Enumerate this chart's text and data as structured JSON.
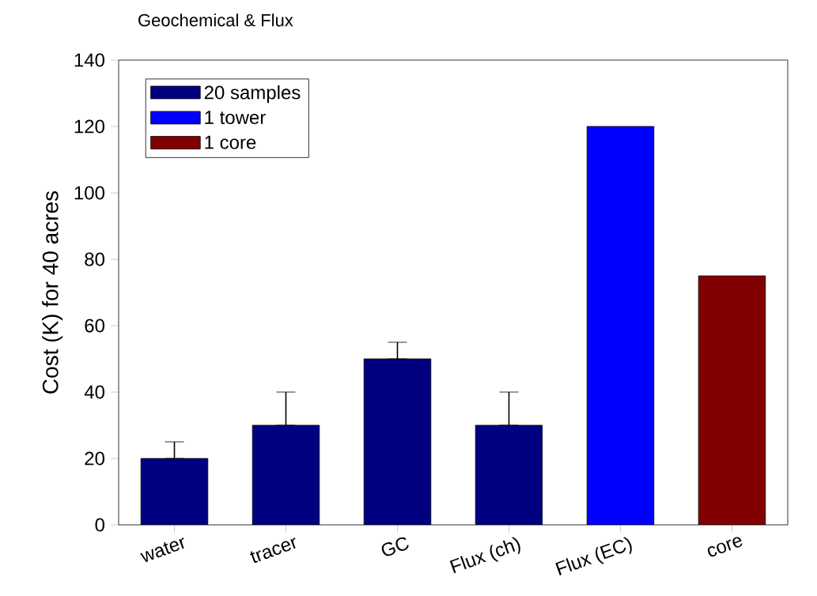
{
  "chart_data": {
    "type": "bar",
    "title": "Geochemical & Flux",
    "ylabel": "Cost (K) for 40 acres",
    "categories": [
      "water",
      "tracer",
      "GC",
      "Flux (ch)",
      "Flux (EC)",
      "core"
    ],
    "series": [
      {
        "name": "20 samples",
        "color": "#000080",
        "values": [
          20,
          30,
          50,
          30,
          null,
          null
        ],
        "errors": [
          [
            20,
            25
          ],
          [
            30,
            40
          ],
          [
            50,
            55
          ],
          [
            30,
            40
          ],
          null,
          null
        ]
      },
      {
        "name": "1 tower",
        "color": "#0000ff",
        "values": [
          null,
          null,
          null,
          null,
          120,
          null
        ]
      },
      {
        "name": "1 core",
        "color": "#800000",
        "values": [
          null,
          null,
          null,
          null,
          null,
          75
        ]
      }
    ],
    "ylim": [
      0,
      140
    ],
    "yticks": [
      0,
      20,
      40,
      60,
      80,
      100,
      120,
      140
    ],
    "legend": "top left",
    "grid": false
  }
}
